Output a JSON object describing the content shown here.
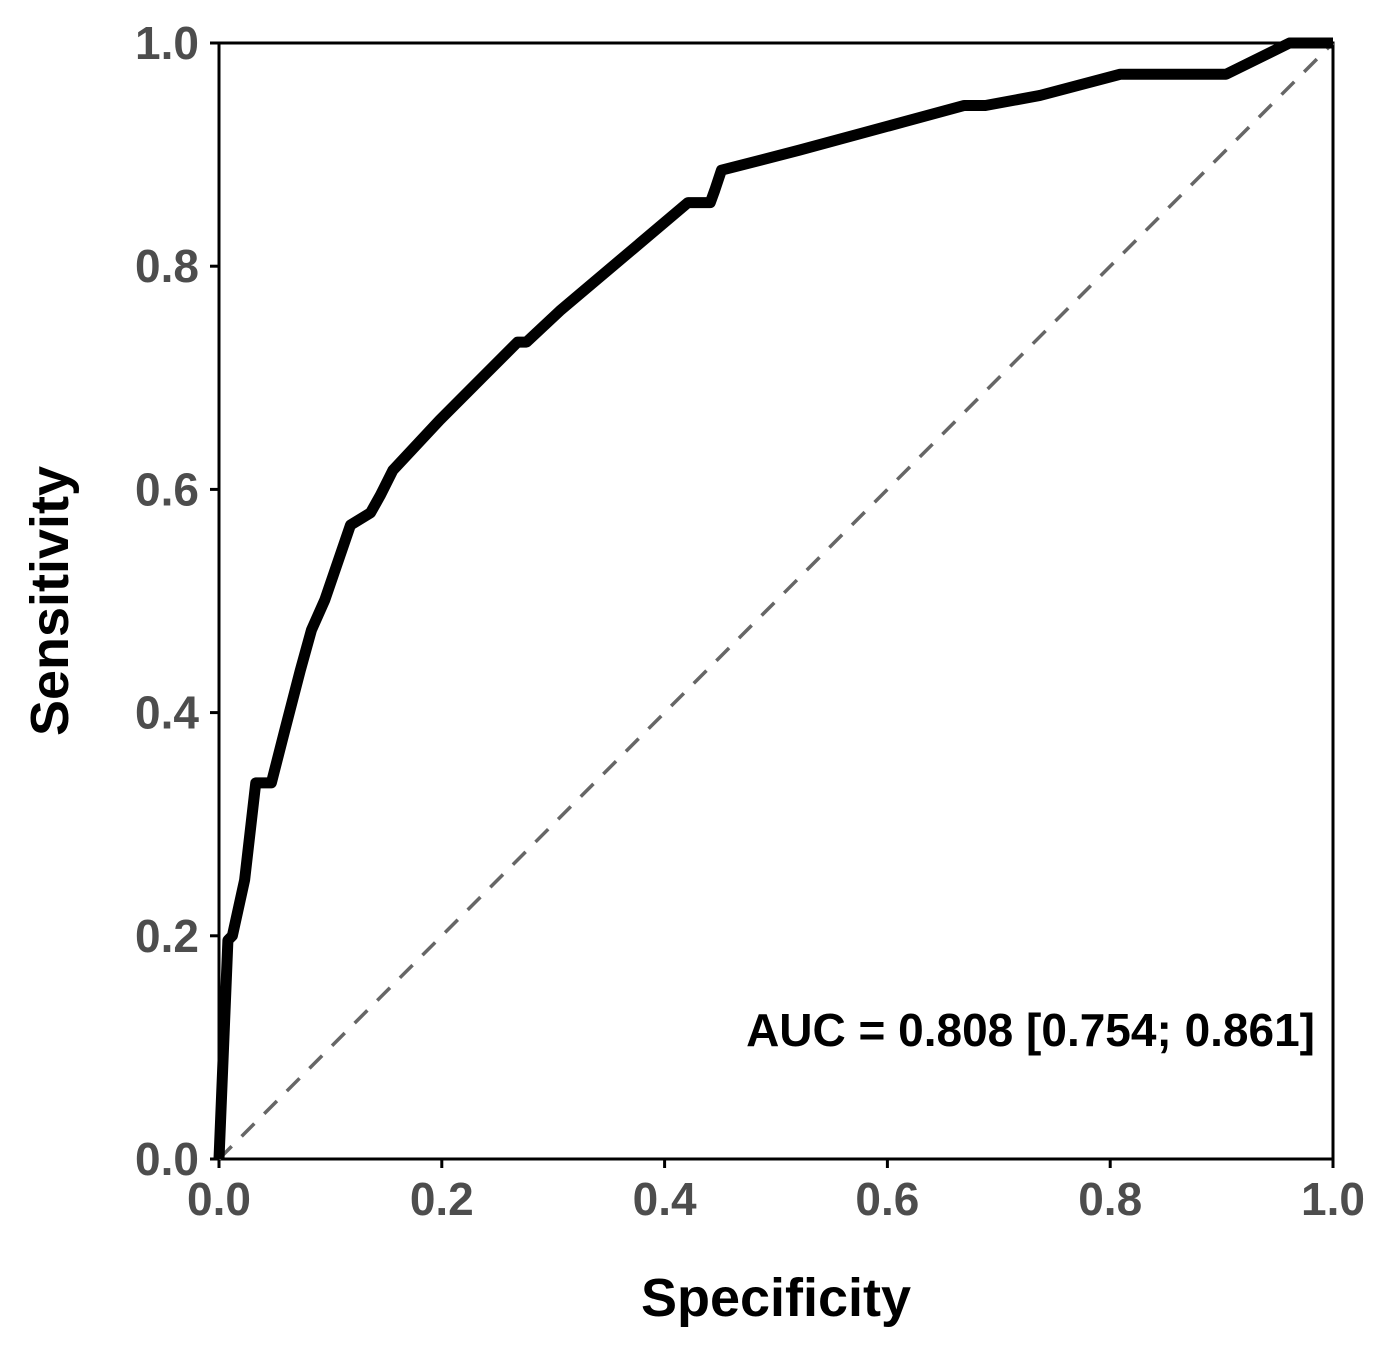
{
  "chart_data": {
    "type": "line",
    "x_label": "Specificity",
    "y_label": "Sensitivity",
    "annotation": "AUC = 0.808 [0.754; 0.861]",
    "xlim": [
      0,
      1
    ],
    "ylim": [
      0,
      1
    ],
    "xticks": [
      {
        "value": 0,
        "label": "0.0"
      },
      0.2,
      0.4,
      0.6,
      0.8,
      {
        "value": 1,
        "label": "1.0"
      }
    ],
    "yticks": [
      {
        "value": 0,
        "label": "0.0"
      },
      0.2,
      0.4,
      0.6,
      0.8,
      {
        "value": 1,
        "label": "1.0"
      }
    ],
    "reference_line": true,
    "series": [
      {
        "color": "#000000",
        "x": [
          0,
          0.008,
          0.012,
          0.023,
          0.033,
          0.047,
          0.059,
          0.073,
          0.083,
          0.095,
          0.118,
          0.136,
          0.145,
          0.156,
          0.198,
          0.268,
          0.276,
          0.306,
          0.421,
          0.441,
          0.445,
          0.451,
          0.521,
          0.669,
          0.688,
          0.737,
          0.809,
          0.904,
          0.961,
          1
        ],
        "values": [
          0,
          0.196,
          0.2,
          0.25,
          0.337,
          0.337,
          0.384,
          0.438,
          0.474,
          0.501,
          0.568,
          0.579,
          0.595,
          0.617,
          0.662,
          0.732,
          0.732,
          0.76,
          0.857,
          0.857,
          0.868,
          0.886,
          0.904,
          0.944,
          0.944,
          0.953,
          0.972,
          0.972,
          1,
          1
        ]
      }
    ]
  }
}
